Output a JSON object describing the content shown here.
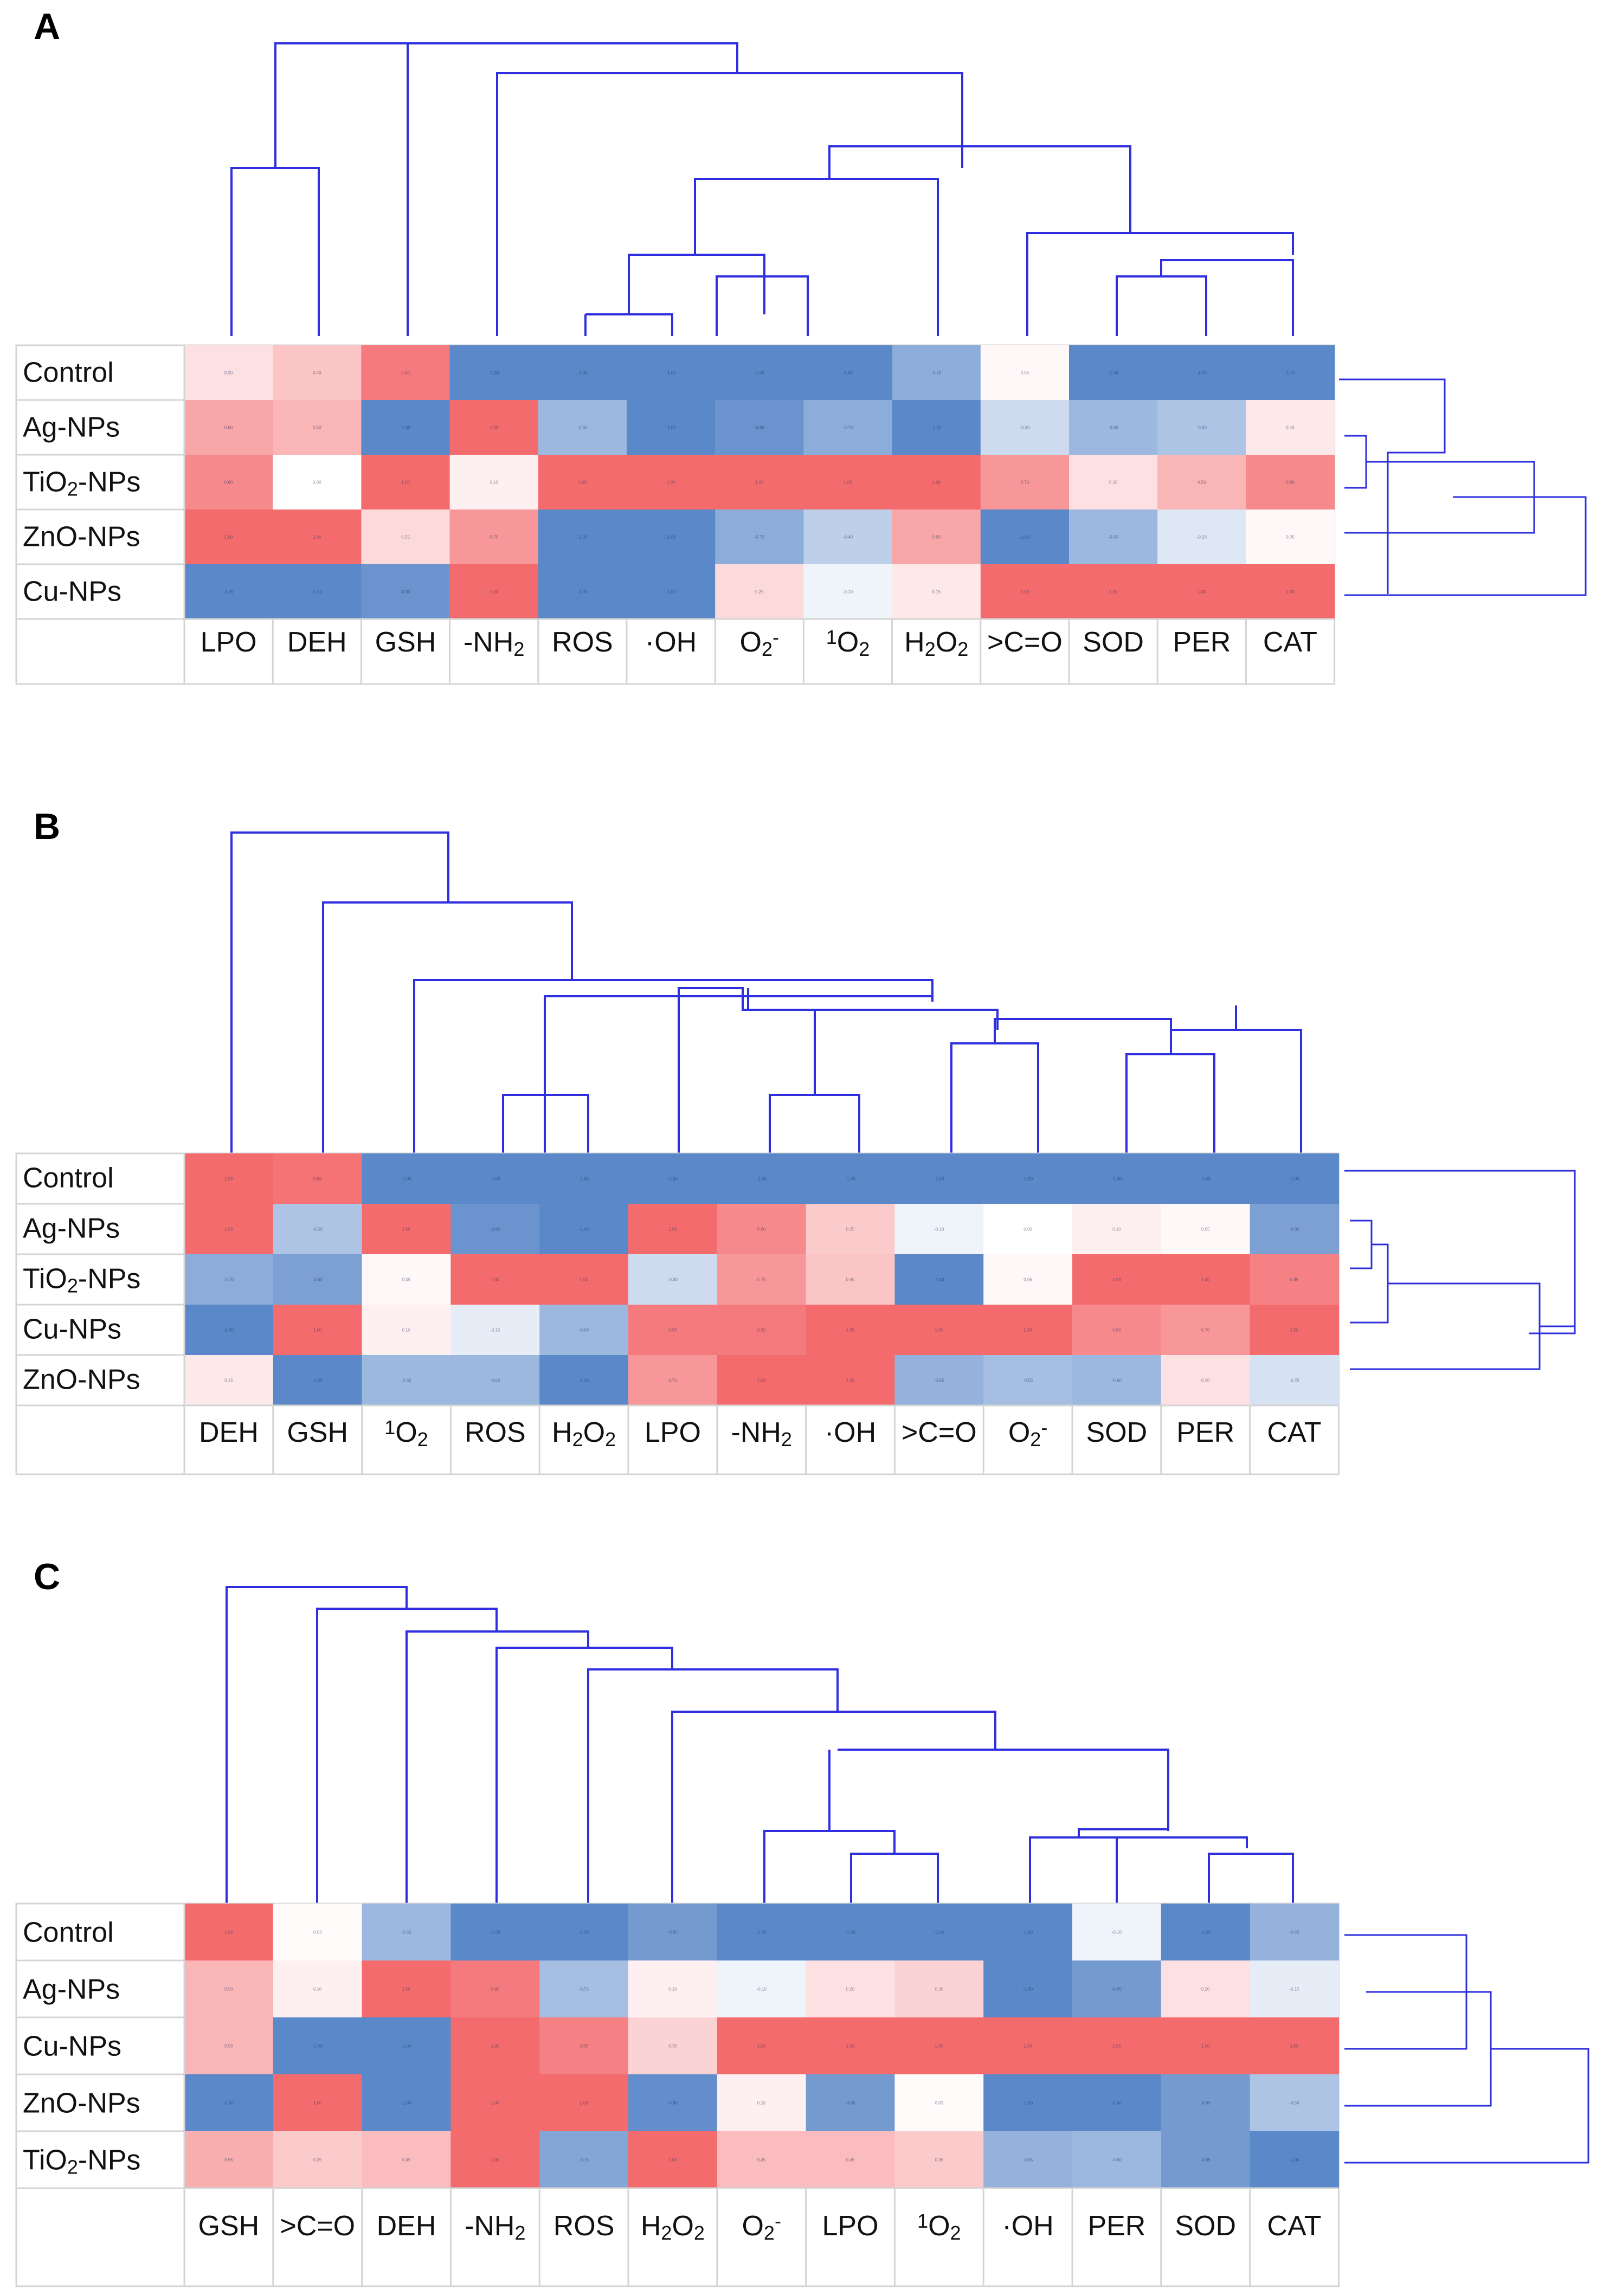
{
  "figure": {
    "panel_labels": [
      "A",
      "B",
      "C"
    ]
  },
  "colors": {
    "low": "#5b88c8",
    "mid": "#ffffff",
    "high": "#f46b6e",
    "dendrogram": "#2f2fdf",
    "grid": "#d4d4d4"
  },
  "chart_data": [
    {
      "type": "heatmap",
      "panel": "A",
      "rows": [
        "Control",
        "Ag-NPs",
        "TiO2-NPs",
        "ZnO-NPs",
        "Cu-NPs"
      ],
      "columns": [
        "LPO",
        "DEH",
        "GSH",
        "-NH2",
        "ROS",
        "·OH",
        "O2-",
        "1O2",
        "H2O2",
        ">C=O",
        "SOD",
        "PER",
        "CAT"
      ],
      "scale": [
        -1,
        1
      ],
      "values": [
        [
          0.2,
          0.4,
          0.9,
          -1,
          -1,
          -1,
          -1,
          -1,
          -0.7,
          0.05,
          -1,
          -1,
          -1
        ],
        [
          0.6,
          0.5,
          -1,
          1,
          -0.6,
          -1,
          -0.9,
          -0.7,
          -1,
          -0.3,
          -0.6,
          -0.5,
          0.15
        ],
        [
          0.8,
          0.0,
          1,
          0.1,
          1,
          1,
          1,
          1,
          1,
          0.7,
          0.2,
          0.5,
          0.8
        ],
        [
          1,
          1,
          0.25,
          0.7,
          -1,
          -1,
          -0.7,
          -0.4,
          0.6,
          -1,
          -0.6,
          -0.2,
          0.05
        ],
        [
          -1,
          -1,
          -0.9,
          1,
          -1,
          -1,
          0.25,
          -0.1,
          0.15,
          1,
          1,
          1,
          1
        ]
      ]
    },
    {
      "type": "heatmap",
      "panel": "B",
      "rows": [
        "Control",
        "Ag-NPs",
        "TiO2-NPs",
        "Cu-NPs",
        "ZnO-NPs"
      ],
      "columns": [
        "DEH",
        "GSH",
        "1O2",
        "ROS",
        "H2O2",
        "LPO",
        "-NH2",
        "·OH",
        ">C=O",
        "O2-",
        "SOD",
        "PER",
        "CAT"
      ],
      "scale": [
        -1,
        1
      ],
      "values": [
        [
          1,
          0.95,
          -1,
          -1,
          -1,
          -1,
          -1,
          -1,
          -1,
          -1,
          -1,
          -1,
          -1
        ],
        [
          1,
          -0.5,
          1,
          -0.9,
          -1,
          1,
          0.8,
          0.35,
          -0.1,
          0.0,
          0.1,
          0.05,
          -0.8
        ],
        [
          -0.7,
          -0.8,
          0.05,
          1,
          1,
          -0.3,
          0.7,
          0.4,
          -1,
          0.05,
          1,
          1,
          0.85
        ],
        [
          -1,
          1,
          0.1,
          -0.15,
          -0.6,
          0.9,
          0.9,
          1,
          1,
          1,
          0.8,
          0.7,
          1
        ],
        [
          0.15,
          -1,
          -0.6,
          -0.6,
          -1,
          0.7,
          1,
          1,
          -0.65,
          -0.55,
          -0.6,
          0.2,
          -0.25
        ]
      ]
    },
    {
      "type": "heatmap",
      "panel": "C",
      "rows": [
        "Control",
        "Ag-NPs",
        "Cu-NPs",
        "ZnO-NPs",
        "TiO2-NPs"
      ],
      "columns": [
        "GSH",
        ">C=O",
        "DEH",
        "-NH2",
        "ROS",
        "H2O2",
        "O2-",
        "LPO",
        "1O2",
        "·OH",
        "PER",
        "SOD",
        "CAT"
      ],
      "scale": [
        -1,
        1
      ],
      "values": [
        [
          1,
          0.03,
          -0.6,
          -1,
          -1,
          -0.85,
          -1,
          -1,
          -1,
          -1,
          -0.1,
          -1,
          -0.65
        ],
        [
          0.5,
          0.1,
          1,
          0.9,
          -0.55,
          0.1,
          -0.1,
          0.2,
          0.3,
          -1,
          -0.85,
          0.2,
          -0.15
        ],
        [
          0.5,
          -1,
          -1,
          1,
          0.85,
          0.3,
          1,
          1,
          1,
          1,
          1,
          1,
          1
        ],
        [
          -1,
          1,
          -1,
          1,
          1,
          -0.95,
          0.1,
          -0.85,
          0.03,
          -1,
          -1,
          -0.85,
          -0.5
        ],
        [
          0.55,
          0.35,
          0.45,
          1,
          -0.75,
          1,
          0.45,
          0.45,
          0.35,
          -0.65,
          -0.6,
          -0.85,
          -1
        ]
      ]
    }
  ]
}
